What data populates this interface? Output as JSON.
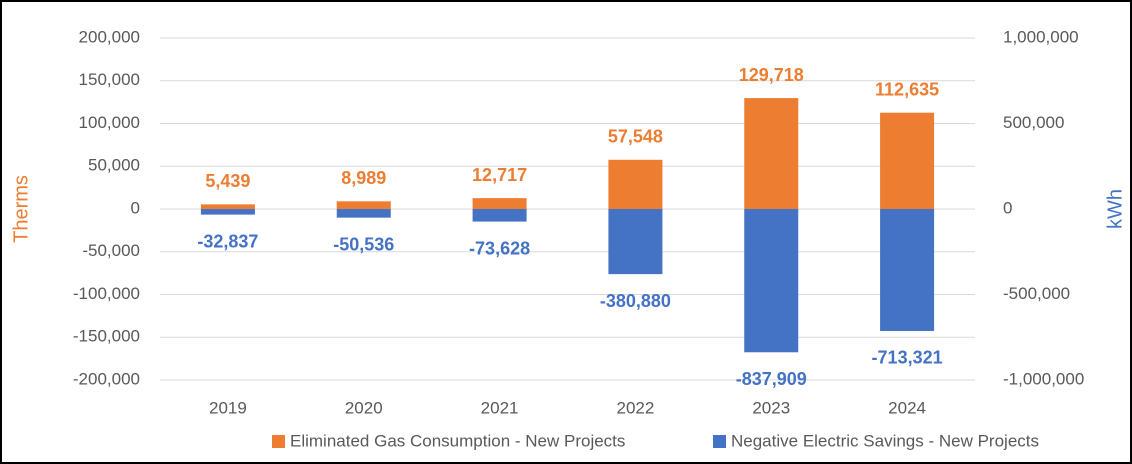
{
  "chart_data": {
    "type": "bar",
    "categories": [
      "2019",
      "2020",
      "2021",
      "2022",
      "2023",
      "2024"
    ],
    "series": [
      {
        "name": "Eliminated Gas Consumption - New Projects",
        "color": "#ed7d31",
        "axis": "y",
        "values": [
          5439,
          8989,
          12717,
          57548,
          129718,
          112635
        ],
        "value_labels": [
          "5,439",
          "8,989",
          "12,717",
          "57,548",
          "129,718",
          "112,635"
        ]
      },
      {
        "name": "Negative Electric Savings - New Projects",
        "color": "#4472c4",
        "axis": "y2",
        "values": [
          -32837,
          -50536,
          -73628,
          -380880,
          -837909,
          -713321
        ],
        "value_labels": [
          "-32,837",
          "-50,536",
          "-73,628",
          "-380,880",
          "-837,909",
          "-713,321"
        ]
      }
    ],
    "ylabel": "Therms",
    "y2label": "kWh",
    "ylim": [
      -200000,
      200000
    ],
    "yticks": [
      {
        "value": -200000,
        "label": "-200,000"
      },
      {
        "value": -150000,
        "label": "-150,000"
      },
      {
        "value": -100000,
        "label": "-100,000"
      },
      {
        "value": -50000,
        "label": "-50,000"
      },
      0,
      {
        "value": 50000,
        "label": "50,000"
      },
      {
        "value": 100000,
        "label": "100,000"
      },
      {
        "value": 150000,
        "label": "150,000"
      },
      {
        "value": 200000,
        "label": "200,000"
      }
    ],
    "y2lim": [
      -1000000,
      1000000
    ],
    "y2ticks": [
      {
        "value": -1000000,
        "label": "-1,000,000"
      },
      {
        "value": -500000,
        "label": "-500,000"
      },
      0,
      {
        "value": 500000,
        "label": "500,000"
      },
      {
        "value": 1000000,
        "label": "1,000,000"
      }
    ],
    "grid": true,
    "legend": "bottom"
  }
}
